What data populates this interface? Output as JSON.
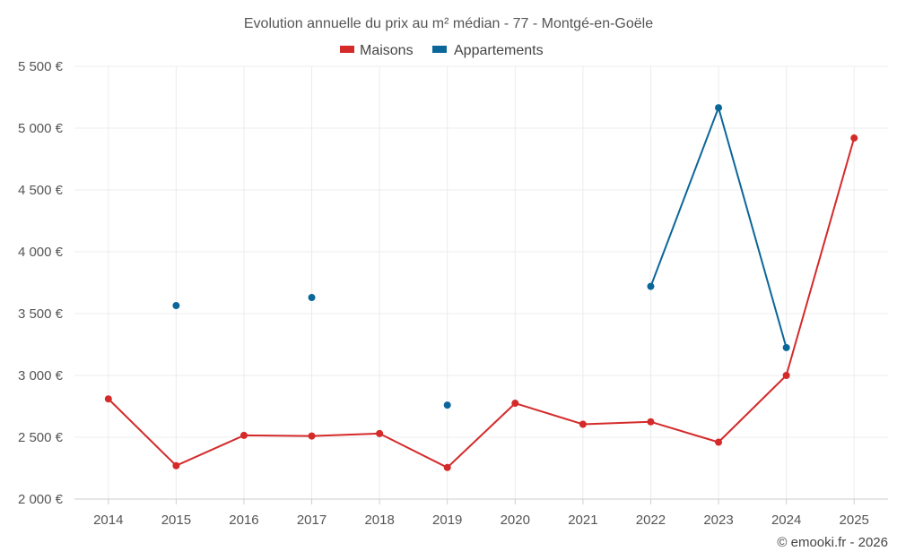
{
  "chart_data": {
    "type": "line",
    "title": "Evolution annuelle du prix au m² médian - 77 - Montgé-en-Goële",
    "categories": [
      "2014",
      "2015",
      "2016",
      "2017",
      "2018",
      "2019",
      "2020",
      "2021",
      "2022",
      "2023",
      "2024",
      "2025"
    ],
    "ylim": [
      2000,
      5500
    ],
    "yticks": [
      2000,
      2500,
      3000,
      3500,
      4000,
      4500,
      5000,
      5500
    ],
    "ytick_labels": [
      "2 000 €",
      "2 500 €",
      "3 000 €",
      "3 500 €",
      "4 000 €",
      "4 500 €",
      "5 000 €",
      "5 500 €"
    ],
    "grid": true,
    "legend_position": "top-center",
    "series": [
      {
        "name": "Maisons",
        "color": "#d42a2a",
        "values": [
          2810,
          2270,
          2515,
          2510,
          2530,
          2255,
          2775,
          2605,
          2625,
          2460,
          3000,
          4920
        ]
      },
      {
        "name": "Appartements",
        "color": "#0b6699",
        "values": [
          null,
          3565,
          null,
          3630,
          null,
          2760,
          null,
          null,
          3720,
          5165,
          3225,
          null
        ]
      }
    ],
    "credit": "© emooki.fr - 2026"
  }
}
